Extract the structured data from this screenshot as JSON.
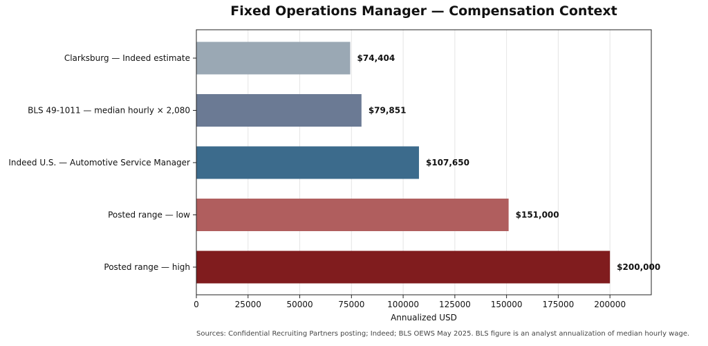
{
  "chart_data": {
    "type": "bar",
    "orientation": "horizontal",
    "title": "Fixed Operations Manager — Compensation Context",
    "xlabel": "Annualized USD",
    "ylabel": "",
    "xlim": [
      0,
      220000
    ],
    "xticks": [
      0,
      25000,
      50000,
      75000,
      100000,
      125000,
      150000,
      175000,
      200000
    ],
    "xtick_labels": [
      "0",
      "25000",
      "50000",
      "75000",
      "100000",
      "125000",
      "150000",
      "175000",
      "200000"
    ],
    "grid": "vertical",
    "categories": [
      "Clarksburg — Indeed estimate",
      "BLS 49-1011 — median hourly × 2,080",
      "Indeed U.S. — Automotive Service Manager",
      "Posted range — low",
      "Posted range — high"
    ],
    "values": [
      74404,
      79851,
      107650,
      151000,
      200000
    ],
    "value_labels": [
      "$74,404",
      "$79,851",
      "$107,650",
      "$151,000",
      "$200,000"
    ],
    "bar_colors": [
      "#9aa8b4",
      "#6b7a94",
      "#3c6b8c",
      "#b05e5e",
      "#801c1e"
    ]
  },
  "footer": {
    "source_note": "Sources: Confidential Recruiting Partners posting; Indeed; BLS OEWS May 2025. BLS figure is an analyst annualization of median hourly wage."
  }
}
